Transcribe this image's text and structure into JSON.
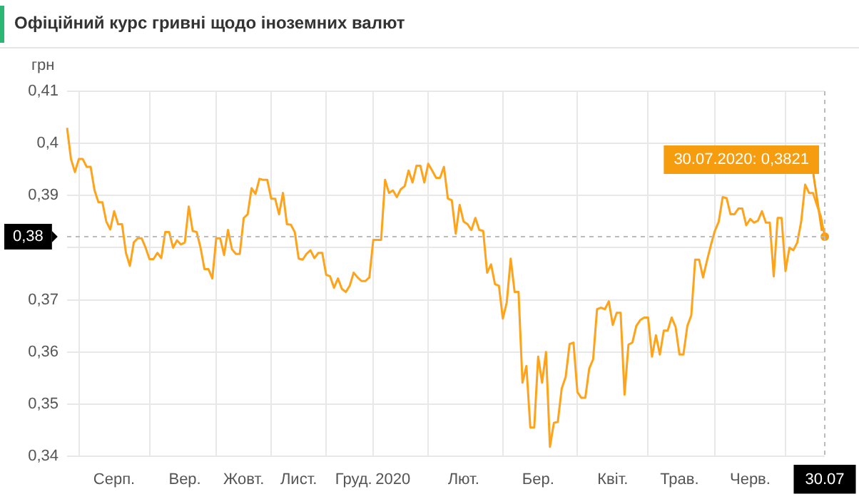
{
  "chart_data": {
    "type": "line",
    "title": "Офіційний курс гривні щодо іноземних валют",
    "ylabel": "грн",
    "categories": [
      null,
      null,
      null,
      null,
      null,
      null,
      null,
      null,
      null,
      null,
      null,
      null,
      "Серп.",
      null,
      null,
      null,
      null,
      null,
      null,
      null,
      null,
      null,
      null,
      null,
      null,
      null,
      null,
      null,
      null,
      null,
      "Вер.",
      null,
      null,
      null,
      null,
      null,
      null,
      null,
      null,
      null,
      null,
      null,
      null,
      null,
      null,
      "Жовт.",
      null,
      null,
      null,
      null,
      null,
      null,
      null,
      null,
      null,
      null,
      null,
      null,
      null,
      "Лист.",
      null,
      null,
      null,
      null,
      null,
      null,
      null,
      null,
      null,
      null,
      null,
      null,
      null,
      "Груд.",
      null,
      null,
      null,
      null,
      null,
      null,
      null,
      null,
      null,
      "2020",
      null,
      null,
      null,
      null,
      null,
      null,
      null,
      null,
      null,
      null,
      null,
      null,
      null,
      null,
      null,
      null,
      null,
      "Лют.",
      null,
      null,
      null,
      null,
      null,
      null,
      null,
      null,
      null,
      null,
      null,
      null,
      null,
      null,
      null,
      null,
      null,
      null,
      "Бер.",
      null,
      null,
      null,
      null,
      null,
      null,
      null,
      null,
      null,
      null,
      null,
      null,
      null,
      null,
      null,
      null,
      null,
      null,
      "Квіт.",
      null,
      null,
      null,
      null,
      null,
      null,
      null,
      null,
      null,
      null,
      null,
      null,
      null,
      null,
      null,
      null,
      "Трав.",
      null,
      null,
      null,
      null,
      null,
      null,
      null,
      null,
      null,
      null,
      null,
      null,
      null,
      null,
      null,
      null,
      null,
      "Черв.",
      null,
      null,
      null,
      null,
      null,
      null,
      null,
      null,
      null,
      null,
      null,
      null,
      null,
      null,
      null,
      null,
      null,
      null,
      "30.07"
    ],
    "series": [
      {
        "color": "#ffa31a",
        "values": [
          0.403,
          0.397,
          0.3945,
          0.397,
          0.397,
          0.3955,
          0.3955,
          0.391,
          0.3887,
          0.3887,
          0.385,
          0.3835,
          0.387,
          0.3845,
          0.3845,
          0.379,
          0.3765,
          0.381,
          0.3818,
          0.3818,
          0.38,
          0.3778,
          0.3778,
          0.379,
          0.378,
          0.383,
          0.383,
          0.38,
          0.3814,
          0.3806,
          0.381,
          0.3879,
          0.3832,
          0.383,
          0.38,
          0.3759,
          0.3759,
          0.3741,
          0.3818,
          0.3818,
          0.3786,
          0.3834,
          0.3797,
          0.3788,
          0.3788,
          0.3857,
          0.3864,
          0.3914,
          0.3903,
          0.3932,
          0.393,
          0.393,
          0.3894,
          0.3894,
          0.3864,
          0.3905,
          0.3845,
          0.3844,
          0.383,
          0.3779,
          0.3777,
          0.3788,
          0.3795,
          0.378,
          0.379,
          0.379,
          0.3748,
          0.3745,
          0.3723,
          0.3741,
          0.3721,
          0.3715,
          0.3727,
          0.3752,
          0.3743,
          0.3736,
          0.3736,
          0.3743,
          0.3815,
          0.3815,
          0.3815,
          0.393,
          0.3905,
          0.391,
          0.3897,
          0.3912,
          0.3918,
          0.3948,
          0.3925,
          0.3957,
          0.3957,
          0.3925,
          0.3961,
          0.3948,
          0.3934,
          0.3934,
          0.3955,
          0.3894,
          0.3891,
          0.3827,
          0.3882,
          0.385,
          0.3845,
          0.3834,
          0.3857,
          0.3834,
          0.3832,
          0.3752,
          0.3768,
          0.373,
          0.3727,
          0.3664,
          0.3695,
          0.3779,
          0.3715,
          0.3715,
          0.3541,
          0.3573,
          0.3455,
          0.3455,
          0.3591,
          0.3541,
          0.36,
          0.3418,
          0.3464,
          0.3466,
          0.353,
          0.3552,
          0.3615,
          0.3618,
          0.3523,
          0.3512,
          0.3512,
          0.3568,
          0.3586,
          0.3682,
          0.3685,
          0.3682,
          0.3697,
          0.3652,
          0.3675,
          0.3675,
          0.3518,
          0.3614,
          0.3618,
          0.365,
          0.3661,
          0.3666,
          0.3666,
          0.3591,
          0.3632,
          0.3595,
          0.3641,
          0.3641,
          0.3666,
          0.3648,
          0.3595,
          0.3595,
          0.365,
          0.367,
          0.3777,
          0.3777,
          0.3743,
          0.3775,
          0.3805,
          0.3832,
          0.385,
          0.3897,
          0.3895,
          0.3864,
          0.3864,
          0.3875,
          0.3875,
          0.3843,
          0.3855,
          0.3848,
          0.3852,
          0.387,
          0.3848,
          0.3848,
          0.3745,
          0.3857,
          0.3857,
          0.3755,
          0.38,
          0.3795,
          0.381,
          0.385,
          0.3921,
          0.3905,
          0.3905,
          0.3882,
          0.386,
          0.3821
        ]
      }
    ],
    "ylim": [
      0.34,
      0.41
    ],
    "yticks": [
      {
        "value": 0.34,
        "label": "0,34"
      },
      {
        "value": 0.35,
        "label": "0,35"
      },
      {
        "value": 0.36,
        "label": "0,36"
      },
      {
        "value": 0.37,
        "label": "0,37"
      },
      {
        "value": 0.38,
        "label": null
      },
      {
        "value": 0.39,
        "label": "0,39"
      },
      {
        "value": 0.4,
        "label": "0,4"
      },
      {
        "value": 0.41,
        "label": "0,41"
      }
    ],
    "grid": true,
    "legend": false,
    "ref_lines": [
      {
        "axis": "y",
        "value": 0.3821,
        "label": "0,38",
        "color": "#bbbbbb",
        "line_style": "dashed"
      },
      {
        "axis": "x",
        "value": "30.07",
        "color": "#bbbbbb",
        "line_style": "dashed"
      }
    ],
    "annotations": [
      {
        "text": "30.07.2020: 0,3821",
        "x": "30.07",
        "y": 0.3821
      }
    ]
  }
}
